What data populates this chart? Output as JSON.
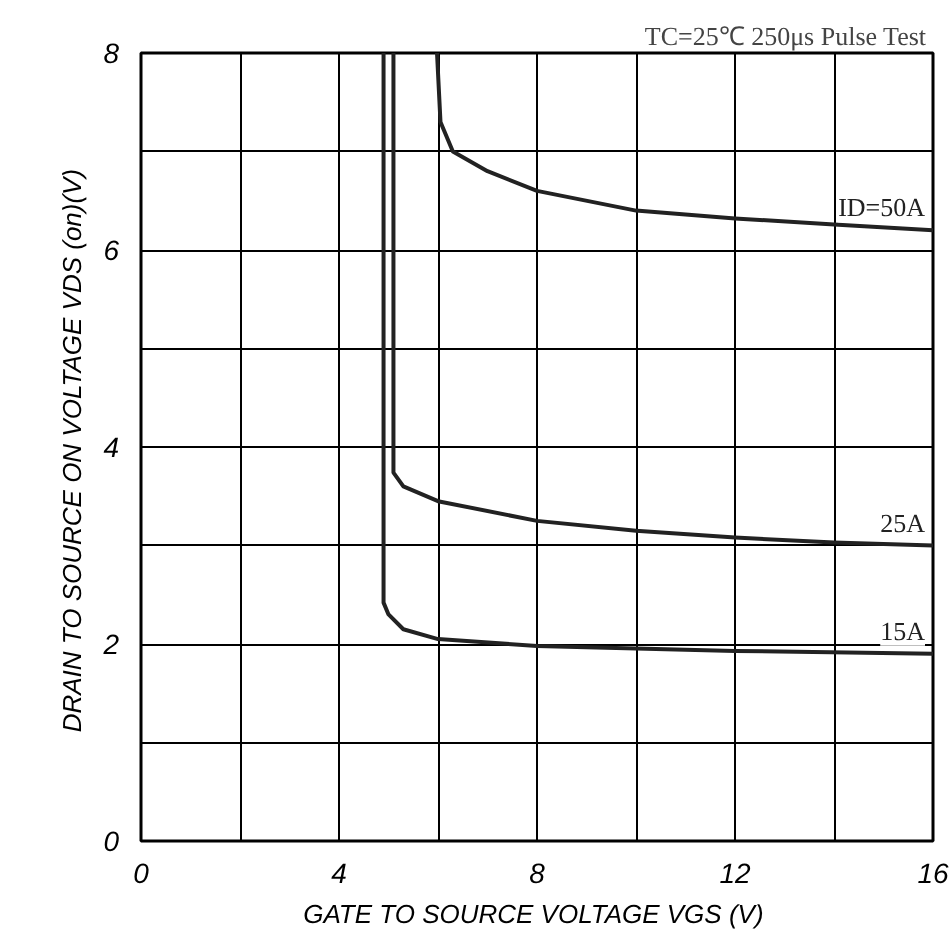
{
  "chart_data": {
    "type": "line",
    "xlabel": "GATE TO SOURCE VOLTAGE  VGS (V)",
    "ylabel": "DRAIN TO SOURCE ON VOLTAGE  VDS (on)(V)",
    "annotations": [
      "TC=25℃  250μs Pulse Test"
    ],
    "xlim": [
      0,
      16
    ],
    "ylim": [
      0,
      8
    ],
    "xticks": [
      0,
      {
        "value": 2,
        "label": null
      },
      4,
      {
        "value": 6,
        "label": null
      },
      8,
      {
        "value": 10,
        "label": null
      },
      12,
      {
        "value": 14,
        "label": null
      },
      16
    ],
    "yticks": [
      0,
      {
        "value": 1,
        "label": null
      },
      2,
      {
        "value": 3,
        "label": null
      },
      4,
      {
        "value": 5,
        "label": null
      },
      6,
      {
        "value": 7,
        "label": null
      },
      8
    ],
    "grid": true,
    "marker": "none",
    "line_style": "solid",
    "series": [
      {
        "name": "ID=50A",
        "color": "#222222",
        "x": [
          5.98,
          6.05,
          6.3,
          7,
          8,
          10,
          12,
          14,
          16
        ],
        "values": [
          8,
          7.3,
          7.0,
          6.8,
          6.6,
          6.4,
          6.32,
          6.26,
          6.2
        ]
      },
      {
        "name": "25A",
        "color": "#222222",
        "x": [
          5.1,
          5.1,
          5.3,
          6,
          8,
          10,
          12,
          14,
          16
        ],
        "values": [
          8,
          3.74,
          3.6,
          3.45,
          3.25,
          3.15,
          3.08,
          3.03,
          3.0
        ]
      },
      {
        "name": "15A",
        "color": "#222222",
        "x": [
          4.9,
          4.9,
          5.0,
          5.3,
          6,
          8,
          12,
          16
        ],
        "values": [
          8,
          2.42,
          2.3,
          2.15,
          2.05,
          1.98,
          1.93,
          1.9
        ]
      }
    ]
  }
}
